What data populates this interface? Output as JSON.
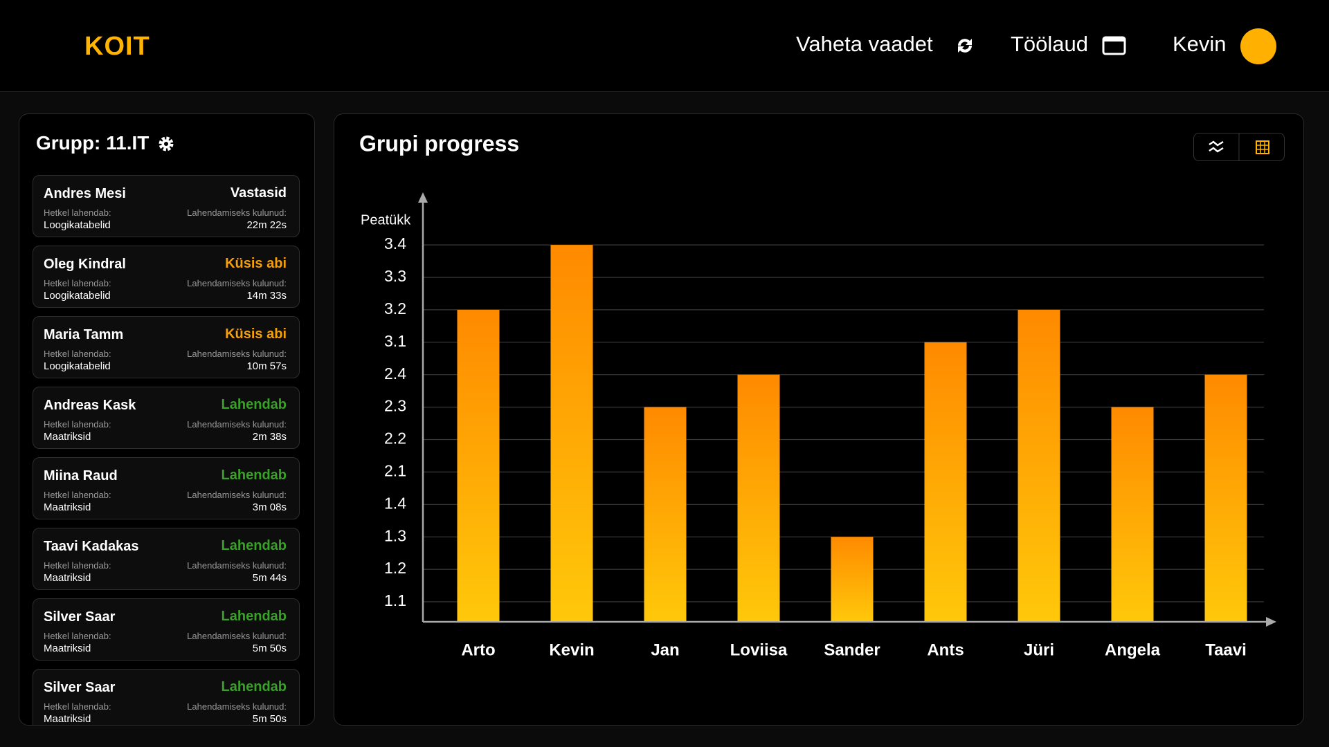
{
  "header": {
    "logo": "KOIT",
    "nav": [
      "Vaheta vaadet",
      "Töölaud"
    ],
    "user": "Kevin"
  },
  "sidebar": {
    "title": "Grupp: 11.IT",
    "students": [
      {
        "name": "Andres Mesi",
        "status": "Vastasid",
        "color": "#ffffff",
        "task_label": "Hetkel lahendab:",
        "task": "Loogikatabelid",
        "time_label": "Lahendamiseks kulunud:",
        "time": "22m 22s"
      },
      {
        "name": "Oleg Kindral",
        "status": "Küsis abi",
        "color": "#f5a00a",
        "task_label": "Hetkel lahendab:",
        "task": "Loogikatabelid",
        "time_label": "Lahendamiseks kulunud:",
        "time": "14m 33s"
      },
      {
        "name": "Maria Tamm",
        "status": "Küsis abi",
        "color": "#f5a00a",
        "task_label": "Hetkel lahendab:",
        "task": "Loogikatabelid",
        "time_label": "Lahendamiseks kulunud:",
        "time": "10m 57s"
      },
      {
        "name": "Andreas Kask",
        "status": "Lahendab",
        "color": "#3aa02a",
        "task_label": "Hetkel lahendab:",
        "task": "Maatriksid",
        "time_label": "Lahendamiseks kulunud:",
        "time": "2m 38s"
      },
      {
        "name": "Miina Raud",
        "status": "Lahendab",
        "color": "#3aa02a",
        "task_label": "Hetkel lahendab:",
        "task": "Maatriksid",
        "time_label": "Lahendamiseks kulunud:",
        "time": "3m 08s"
      },
      {
        "name": "Taavi Kadakas",
        "status": "Lahendab",
        "color": "#3aa02a",
        "task_label": "Hetkel lahendab:",
        "task": "Maatriksid",
        "time_label": "Lahendamiseks kulunud:",
        "time": "5m 44s"
      },
      {
        "name": "Silver Saar",
        "status": "Lahendab",
        "color": "#3aa02a",
        "task_label": "Hetkel lahendab:",
        "task": "Maatriksid",
        "time_label": "Lahendamiseks kulunud:",
        "time": "5m 50s"
      },
      {
        "name": "Silver Saar",
        "status": "Lahendab",
        "color": "#3aa02a",
        "task_label": "Hetkel lahendab:",
        "task": "Maatriksid",
        "time_label": "Lahendamiseks kulunud:",
        "time": "5m 50s"
      }
    ]
  },
  "chart_data": {
    "type": "bar",
    "title": "Grupi progress",
    "y_label": "Peatükk",
    "categories": [
      "Arto",
      "Kevin",
      "Jan",
      "Loviisa",
      "Sander",
      "Ants",
      "Jüri",
      "Angela",
      "Taavi"
    ],
    "values": [
      3.2,
      3.4,
      2.3,
      2.4,
      1.3,
      3.1,
      3.2,
      2.3,
      2.4
    ],
    "yticks": [
      1.1,
      1.2,
      1.3,
      1.4,
      2.1,
      2.2,
      2.3,
      2.4,
      3.1,
      3.2,
      3.3,
      3.4
    ],
    "yscale": "ordinal",
    "grid": true,
    "gradient": [
      "#ff8a00",
      "#ffc80a"
    ]
  }
}
